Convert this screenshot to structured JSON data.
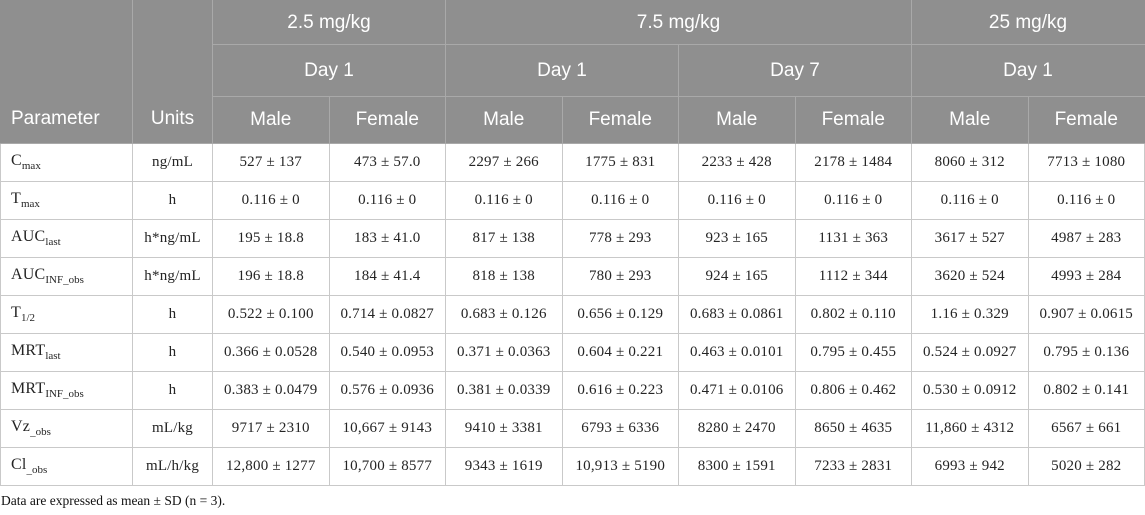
{
  "table": {
    "header": {
      "parameter_label": "Parameter",
      "units_label": "Units",
      "dose_groups": [
        {
          "label": "2.5 mg/kg",
          "days": [
            {
              "label": "Day 1",
              "sexes": [
                "Male",
                "Female"
              ]
            }
          ]
        },
        {
          "label": "7.5 mg/kg",
          "days": [
            {
              "label": "Day 1",
              "sexes": [
                "Male",
                "Female"
              ]
            },
            {
              "label": "Day 7",
              "sexes": [
                "Male",
                "Female"
              ]
            }
          ]
        },
        {
          "label": "25 mg/kg",
          "days": [
            {
              "label": "Day 1",
              "sexes": [
                "Male",
                "Female"
              ]
            }
          ]
        }
      ]
    },
    "rows": [
      {
        "param": "C",
        "sub": "max",
        "units": "ng/mL",
        "values": [
          "527 ± 137",
          "473 ± 57.0",
          "2297 ± 266",
          "1775 ± 831",
          "2233 ± 428",
          "2178 ± 1484",
          "8060 ± 312",
          "7713 ± 1080"
        ]
      },
      {
        "param": "T",
        "sub": "max",
        "units": "h",
        "values": [
          "0.116 ± 0",
          "0.116 ± 0",
          "0.116 ± 0",
          "0.116 ± 0",
          "0.116 ± 0",
          "0.116 ± 0",
          "0.116 ± 0",
          "0.116 ± 0"
        ]
      },
      {
        "param": "AUC",
        "sub": "last",
        "units": "h*ng/mL",
        "values": [
          "195 ± 18.8",
          "183 ± 41.0",
          "817 ± 138",
          "778 ± 293",
          "923 ± 165",
          "1131 ± 363",
          "3617 ± 527",
          "4987 ± 283"
        ]
      },
      {
        "param": "AUC",
        "sub": "INF_obs",
        "units": "h*ng/mL",
        "values": [
          "196 ± 18.8",
          "184 ± 41.4",
          "818 ± 138",
          "780 ± 293",
          "924 ± 165",
          "1112 ± 344",
          "3620 ± 524",
          "4993 ± 284"
        ]
      },
      {
        "param": "T",
        "sub": "1/2",
        "units": "h",
        "values": [
          "0.522 ± 0.100",
          "0.714 ± 0.0827",
          "0.683 ± 0.126",
          "0.656 ± 0.129",
          "0.683 ± 0.0861",
          "0.802 ± 0.110",
          "1.16 ± 0.329",
          "0.907 ± 0.0615"
        ]
      },
      {
        "param": "MRT",
        "sub": "last",
        "units": "h",
        "values": [
          "0.366 ± 0.0528",
          "0.540 ± 0.0953",
          "0.371 ± 0.0363",
          "0.604 ± 0.221",
          "0.463 ± 0.0101",
          "0.795 ± 0.455",
          "0.524 ± 0.0927",
          "0.795 ± 0.136"
        ]
      },
      {
        "param": "MRT",
        "sub": "INF_obs",
        "units": "h",
        "values": [
          "0.383 ± 0.0479",
          "0.576 ± 0.0936",
          "0.381 ± 0.0339",
          "0.616 ± 0.223",
          "0.471 ± 0.0106",
          "0.806 ± 0.462",
          "0.530 ± 0.0912",
          "0.802 ± 0.141"
        ]
      },
      {
        "param": "Vz",
        "sub": "_obs",
        "units": "mL/kg",
        "values": [
          "9717 ± 2310",
          "10,667 ± 9143",
          "9410 ± 3381",
          "6793 ± 6336",
          "8280 ± 2470",
          "8650 ± 4635",
          "11,860 ± 4312",
          "6567 ± 661"
        ]
      },
      {
        "param": "Cl",
        "sub": "_obs",
        "units": "mL/h/kg",
        "values": [
          "12,800 ± 1277",
          "10,700 ± 8577",
          "9343 ± 1619",
          "10,913 ± 5190",
          "8300 ± 1591",
          "7233 ± 2831",
          "6993 ± 942",
          "5020 ± 282"
        ]
      }
    ],
    "footnote": "Data are expressed as mean ± SD (n = 3)."
  },
  "colors": {
    "header_background": "#8f8f8f",
    "header_divider": "#a9a9a9",
    "header_text": "#ffffff",
    "body_border": "#c9c9c9",
    "body_text": "#242424"
  }
}
